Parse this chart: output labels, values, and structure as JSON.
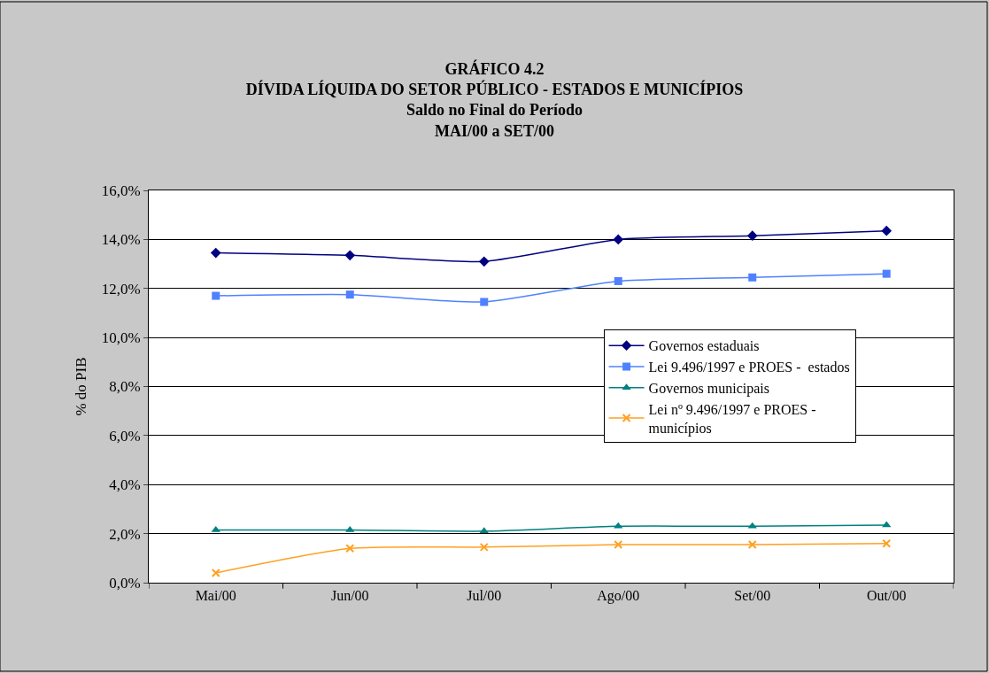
{
  "chart_data": {
    "type": "line",
    "title": "GRÁFICO 4.2\nDÍVIDA LÍQUIDA DO SETOR PÚBLICO - ESTADOS E MUNICÍPIOS\nSaldo no Final do Período\nMAI/00 a SET/00",
    "ylabel": "% do PIB",
    "categories": [
      "Mai/00",
      "Jun/00",
      "Jul/00",
      "Ago/00",
      "Set/00",
      "Out/00"
    ],
    "series": [
      {
        "name": "Governos estaduais",
        "color": "#000080",
        "marker": "diamond",
        "values": [
          13.45,
          13.35,
          13.1,
          14.0,
          14.15,
          14.35
        ]
      },
      {
        "name": "Lei 9.496/1997 e PROES -  estados",
        "color": "#4f81ff",
        "marker": "square",
        "values": [
          11.7,
          11.75,
          11.45,
          12.3,
          12.45,
          12.6
        ]
      },
      {
        "name": "Governos municipais",
        "color": "#008080",
        "marker": "triangle",
        "values": [
          2.15,
          2.15,
          2.1,
          2.3,
          2.3,
          2.35
        ]
      },
      {
        "name": "Lei nº 9.496/1997 e PROES -\nmunicípios",
        "color": "#ffa020",
        "marker": "cross",
        "values": [
          0.4,
          1.4,
          1.45,
          1.55,
          1.55,
          1.6
        ]
      }
    ],
    "ylim": [
      0,
      16
    ],
    "yticks": [
      {
        "value": 0,
        "label": "0,0%"
      },
      {
        "value": 2,
        "label": "2,0%"
      },
      {
        "value": 4,
        "label": "4,0%"
      },
      {
        "value": 6,
        "label": "6,0%"
      },
      {
        "value": 8,
        "label": "8,0%"
      },
      {
        "value": 10,
        "label": "10,0%"
      },
      {
        "value": 12,
        "label": "12,0%"
      },
      {
        "value": 14,
        "label": "14,0%"
      },
      {
        "value": 16,
        "label": "16,0%"
      }
    ],
    "grid": "y",
    "legend": "right"
  }
}
